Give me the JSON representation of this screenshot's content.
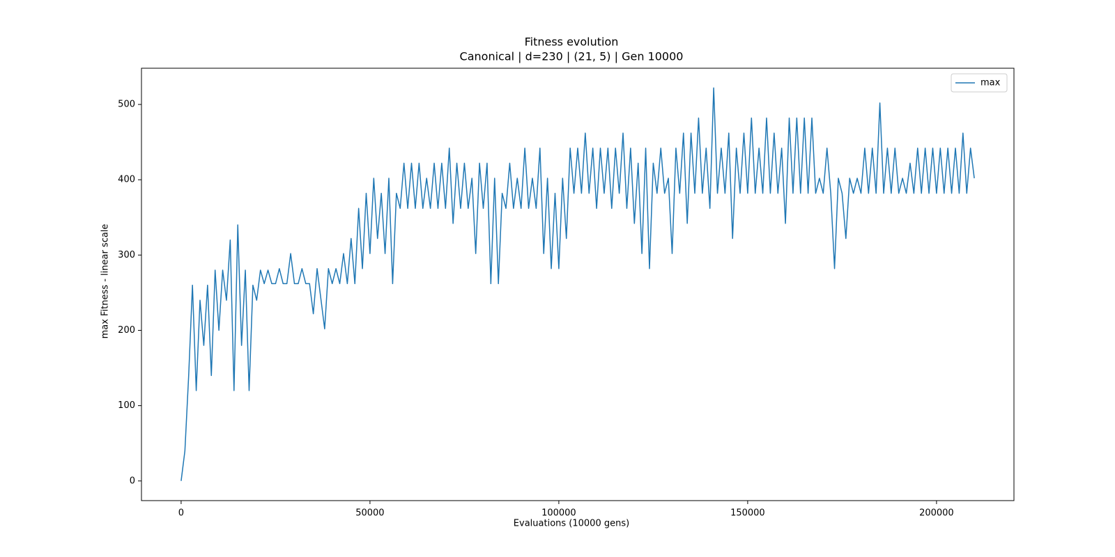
{
  "chart_data": {
    "type": "line",
    "title": "Fitness evolution",
    "subtitle": "Canonical | d=230 | (21, 5) | Gen 10000",
    "xlabel": "Evaluations (10000 gens)",
    "ylabel": "max Fitness - linear scale",
    "legend": "upper right",
    "xlim": [
      -10500,
      220500
    ],
    "ylim": [
      -26.1,
      548.1
    ],
    "xticks": [
      0,
      50000,
      100000,
      150000,
      200000
    ],
    "yticks": [
      0,
      100,
      200,
      300,
      400,
      500
    ],
    "x": [
      0,
      1000,
      2000,
      3000,
      4000,
      5000,
      6000,
      7000,
      8000,
      9000,
      10000,
      11000,
      12000,
      13000,
      14000,
      15000,
      16000,
      17000,
      18000,
      19000,
      20000,
      21000,
      22000,
      23000,
      24000,
      25000,
      26000,
      27000,
      28000,
      29000,
      30000,
      31000,
      32000,
      33000,
      34000,
      35000,
      36000,
      37000,
      38000,
      39000,
      40000,
      41000,
      42000,
      43000,
      44000,
      45000,
      46000,
      47000,
      48000,
      49000,
      50000,
      51000,
      52000,
      53000,
      54000,
      55000,
      56000,
      57000,
      58000,
      59000,
      60000,
      61000,
      62000,
      63000,
      64000,
      65000,
      66000,
      67000,
      68000,
      69000,
      70000,
      71000,
      72000,
      73000,
      74000,
      75000,
      76000,
      77000,
      78000,
      79000,
      80000,
      81000,
      82000,
      83000,
      84000,
      85000,
      86000,
      87000,
      88000,
      89000,
      90000,
      91000,
      92000,
      93000,
      94000,
      95000,
      96000,
      97000,
      98000,
      99000,
      100000,
      101000,
      102000,
      103000,
      104000,
      105000,
      106000,
      107000,
      108000,
      109000,
      110000,
      111000,
      112000,
      113000,
      114000,
      115000,
      116000,
      117000,
      118000,
      119000,
      120000,
      121000,
      122000,
      123000,
      124000,
      125000,
      126000,
      127000,
      128000,
      129000,
      130000,
      131000,
      132000,
      133000,
      134000,
      135000,
      136000,
      137000,
      138000,
      139000,
      140000,
      141000,
      142000,
      143000,
      144000,
      145000,
      146000,
      147000,
      148000,
      149000,
      150000,
      151000,
      152000,
      153000,
      154000,
      155000,
      156000,
      157000,
      158000,
      159000,
      160000,
      161000,
      162000,
      163000,
      164000,
      165000,
      166000,
      167000,
      168000,
      169000,
      170000,
      171000,
      172000,
      173000,
      174000,
      175000,
      176000,
      177000,
      178000,
      179000,
      180000,
      181000,
      182000,
      183000,
      184000,
      185000,
      186000,
      187000,
      188000,
      189000,
      190000,
      191000,
      192000,
      193000,
      194000,
      195000,
      196000,
      197000,
      198000,
      199000,
      200000,
      201000,
      202000,
      203000,
      204000,
      205000,
      206000,
      207000,
      208000,
      209000,
      210000
    ],
    "series": [
      {
        "name": "max",
        "color": "#1f77b4",
        "values": [
          0,
          40,
          140,
          260,
          120,
          240,
          180,
          260,
          140,
          280,
          200,
          280,
          240,
          320,
          120,
          340,
          180,
          280,
          120,
          260,
          240,
          280,
          262,
          280,
          262,
          262,
          282,
          262,
          262,
          302,
          262,
          262,
          282,
          262,
          262,
          222,
          282,
          242,
          202,
          282,
          262,
          282,
          262,
          302,
          262,
          322,
          262,
          362,
          282,
          382,
          302,
          402,
          322,
          382,
          302,
          402,
          262,
          382,
          362,
          422,
          362,
          422,
          362,
          422,
          362,
          402,
          362,
          422,
          362,
          422,
          362,
          442,
          342,
          422,
          362,
          422,
          362,
          402,
          302,
          422,
          362,
          422,
          262,
          402,
          262,
          382,
          362,
          422,
          362,
          402,
          362,
          442,
          362,
          402,
          362,
          442,
          302,
          402,
          282,
          382,
          282,
          402,
          322,
          442,
          382,
          442,
          382,
          462,
          382,
          442,
          362,
          442,
          382,
          442,
          362,
          442,
          382,
          462,
          362,
          442,
          342,
          422,
          302,
          442,
          282,
          422,
          382,
          442,
          382,
          402,
          302,
          442,
          382,
          462,
          342,
          462,
          382,
          482,
          382,
          442,
          362,
          522,
          382,
          442,
          382,
          462,
          322,
          442,
          382,
          462,
          382,
          482,
          382,
          442,
          382,
          482,
          382,
          462,
          382,
          442,
          342,
          482,
          382,
          482,
          382,
          482,
          382,
          482,
          382,
          402,
          382,
          442,
          382,
          282,
          402,
          382,
          322,
          402,
          382,
          402,
          382,
          442,
          382,
          442,
          382,
          502,
          382,
          442,
          382,
          442,
          382,
          402,
          382,
          422,
          382,
          442,
          382,
          442,
          382,
          442,
          382,
          442,
          382,
          442,
          382,
          442,
          382,
          462,
          382,
          442,
          402
        ]
      }
    ]
  }
}
